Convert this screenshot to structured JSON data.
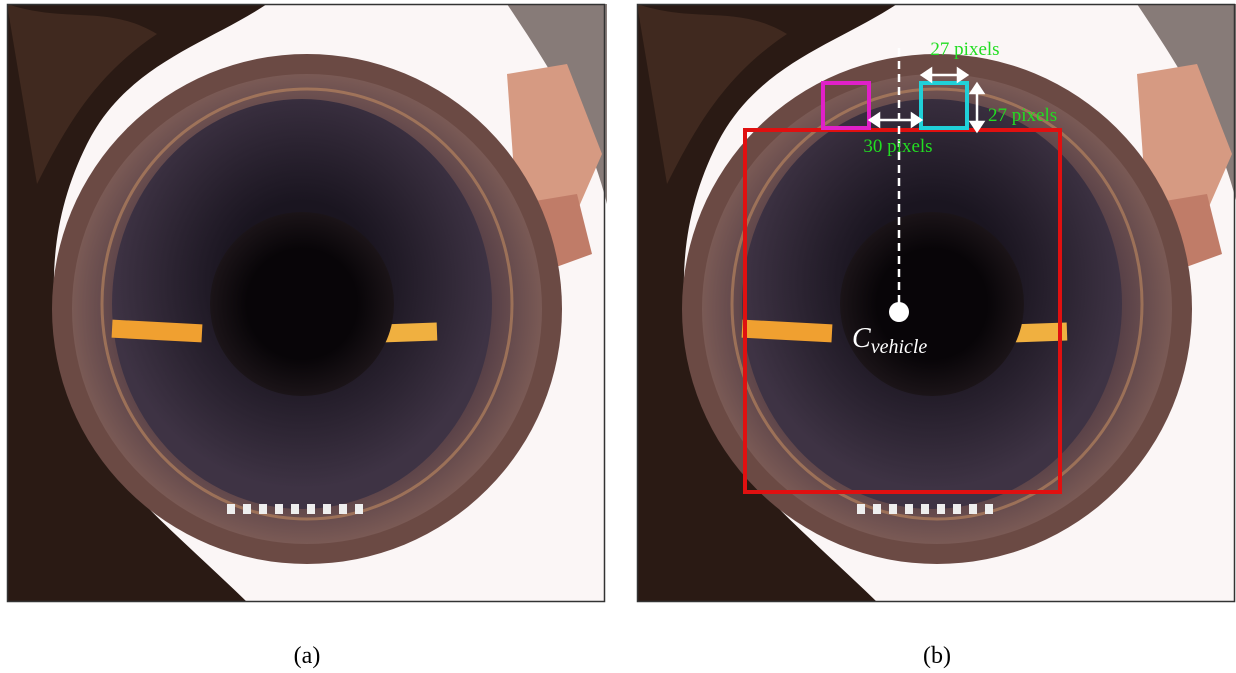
{
  "panels": [
    {
      "caption": "(a)"
    },
    {
      "caption": "(b)",
      "annotations": {
        "top_width": "27 pixels",
        "side_height": "27 pixels",
        "gap": "30 pixels",
        "center_label": {
          "main": "C",
          "sub": "vehicle"
        }
      }
    }
  ]
}
